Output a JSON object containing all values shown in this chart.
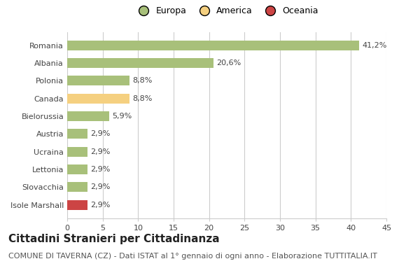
{
  "categories": [
    "Romania",
    "Albania",
    "Polonia",
    "Canada",
    "Bielorussia",
    "Austria",
    "Ucraina",
    "Lettonia",
    "Slovacchia",
    "Isole Marshall"
  ],
  "values": [
    41.2,
    20.6,
    8.8,
    8.8,
    5.9,
    2.9,
    2.9,
    2.9,
    2.9,
    2.9
  ],
  "labels": [
    "41,2%",
    "20,6%",
    "8,8%",
    "8,8%",
    "5,9%",
    "2,9%",
    "2,9%",
    "2,9%",
    "2,9%",
    "2,9%"
  ],
  "colors": [
    "#a8c07a",
    "#a8c07a",
    "#a8c07a",
    "#f5d080",
    "#a8c07a",
    "#a8c07a",
    "#a8c07a",
    "#a8c07a",
    "#a8c07a",
    "#cc4444"
  ],
  "legend": [
    {
      "label": "Europa",
      "color": "#a8c07a"
    },
    {
      "label": "America",
      "color": "#f5d080"
    },
    {
      "label": "Oceania",
      "color": "#cc4444"
    }
  ],
  "xlim": [
    0,
    45
  ],
  "xticks": [
    0,
    5,
    10,
    15,
    20,
    25,
    30,
    35,
    40,
    45
  ],
  "title": "Cittadini Stranieri per Cittadinanza",
  "subtitle": "COMUNE DI TAVERNA (CZ) - Dati ISTAT al 1° gennaio di ogni anno - Elaborazione TUTTITALIA.IT",
  "background_color": "#ffffff",
  "grid_color": "#cccccc",
  "bar_height": 0.55,
  "title_fontsize": 11,
  "subtitle_fontsize": 8,
  "label_fontsize": 8,
  "tick_fontsize": 8
}
